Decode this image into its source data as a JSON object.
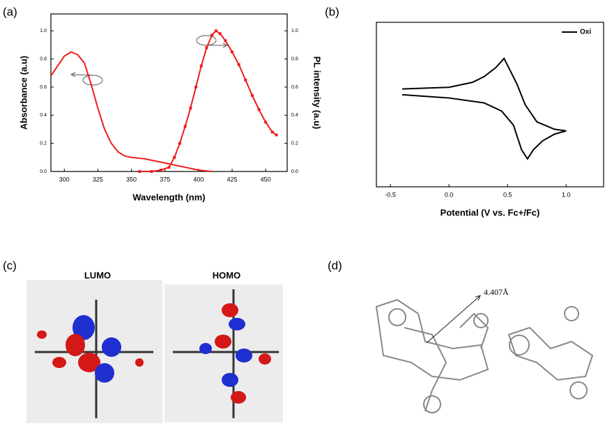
{
  "chart_data": [
    {
      "type": "line",
      "x_label": "Wavelength (nm)",
      "y_label": "Absorbance (a.u)",
      "y2_label": "PL intensity (a.u)",
      "xlim": [
        290,
        466
      ],
      "xticks": [
        300,
        325,
        350,
        375,
        400,
        425,
        450
      ],
      "ylim": [
        0,
        1.12
      ],
      "yticks": [
        {
          "value": 0,
          "label": "0.0"
        },
        {
          "value": 0.2,
          "label": "0.2"
        },
        {
          "value": 0.4,
          "label": "0.4"
        },
        {
          "value": 0.6,
          "label": "0.6"
        },
        {
          "value": 0.8,
          "label": "0.8"
        },
        {
          "value": 1,
          "label": "1.0"
        }
      ],
      "y2lim": [
        0,
        1.12
      ],
      "y2ticks": [
        {
          "value": 0,
          "label": "0.0"
        },
        {
          "value": 0.2,
          "label": "0.2"
        },
        {
          "value": 0.4,
          "label": "0.4"
        },
        {
          "value": 0.6,
          "label": "0.6"
        },
        {
          "value": 0.8,
          "label": "0.8"
        },
        {
          "value": 1,
          "label": "1.0"
        }
      ],
      "series": [
        {
          "color": "#ee1c1c",
          "markers": false,
          "x": [
            290,
            300,
            305,
            310,
            315,
            320,
            325,
            330,
            335,
            340,
            345,
            350,
            360,
            370,
            380,
            390,
            400,
            410
          ],
          "values": [
            0.68,
            0.82,
            0.85,
            0.83,
            0.77,
            0.62,
            0.45,
            0.3,
            0.2,
            0.14,
            0.11,
            0.1,
            0.09,
            0.07,
            0.05,
            0.03,
            0.01,
            0
          ]
        },
        {
          "color": "#ee1c1c",
          "markers": true,
          "axis": "y2",
          "x": [
            356,
            365,
            372,
            378,
            382,
            386,
            390,
            394,
            398,
            402,
            406,
            410,
            413,
            416,
            420,
            425,
            430,
            435,
            440,
            445,
            450,
            455,
            458
          ],
          "values": [
            0,
            0,
            0.01,
            0.03,
            0.1,
            0.2,
            0.32,
            0.45,
            0.6,
            0.75,
            0.88,
            0.97,
            1,
            0.98,
            0.93,
            0.85,
            0.76,
            0.65,
            0.54,
            0.44,
            0.35,
            0.28,
            0.26
          ]
        }
      ]
    },
    {
      "type": "line",
      "x_label": "Potential (V vs. Fc+/Fc)",
      "xlim": [
        -0.62,
        1.32
      ],
      "xticks": [
        -0.5,
        {
          "value": 0,
          "label": "0.0"
        },
        0.5,
        {
          "value": 1,
          "label": "1.0"
        }
      ],
      "ylim": [
        -1,
        1
      ],
      "legend": "top-right",
      "series": [
        {
          "name": "Oxi",
          "color": "#000000",
          "markers": false,
          "x": [
            -0.4,
            0,
            0.2,
            0.3,
            0.4,
            0.47,
            0.52,
            0.58,
            0.65,
            0.75,
            0.9,
            1,
            0.9,
            0.8,
            0.72,
            0.67,
            0.62,
            0.55,
            0.45,
            0.3,
            0,
            -0.4
          ],
          "values": [
            0.19,
            0.21,
            0.27,
            0.34,
            0.45,
            0.56,
            0.42,
            0.25,
            0,
            -0.21,
            -0.3,
            -0.32,
            -0.36,
            -0.44,
            -0.55,
            -0.66,
            -0.55,
            -0.25,
            -0.08,
            0.02,
            0.08,
            0.12
          ]
        }
      ]
    }
  ],
  "panels": {
    "labels": [
      "(a)",
      "(b)",
      "(c)",
      "(d)"
    ],
    "orbitals": [
      "LUMO",
      "HOMO"
    ],
    "distance": "4.407Å"
  }
}
